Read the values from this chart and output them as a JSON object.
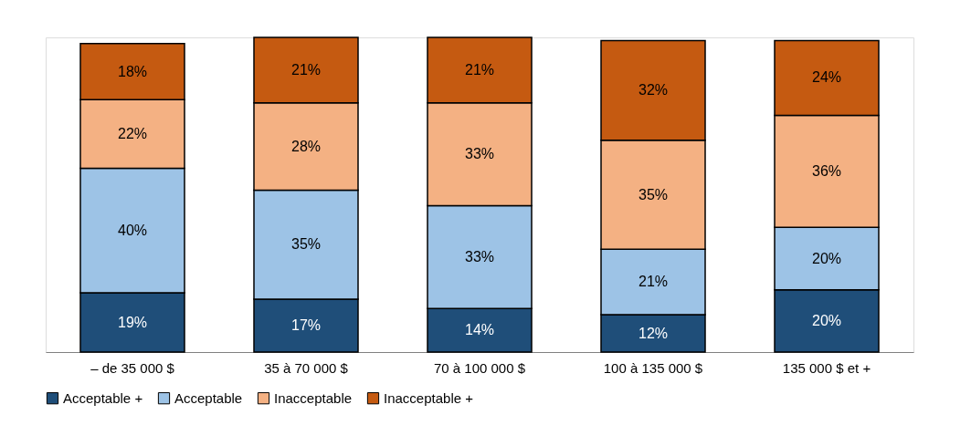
{
  "chart_data": {
    "type": "bar",
    "stacked": true,
    "legend": "bottom",
    "categories": [
      "– de 35 000 $",
      "35 à 70 000 $",
      "70 à 100 000 $",
      "100 à 135 000 $",
      "135 000 $ et +"
    ],
    "series": [
      {
        "name": "Acceptable +",
        "color": "#1f4e79",
        "values": [
          19,
          17,
          14,
          12,
          20
        ],
        "value_labels": [
          "19%",
          "17%",
          "14%",
          "12%",
          "20%"
        ]
      },
      {
        "name": "Acceptable",
        "color": "#9dc3e6",
        "values": [
          40,
          35,
          33,
          21,
          20
        ],
        "value_labels": [
          "40%",
          "35%",
          "33%",
          "21%",
          "20%"
        ]
      },
      {
        "name": "Inacceptable",
        "color": "#f4b183",
        "values": [
          22,
          28,
          33,
          35,
          36
        ],
        "value_labels": [
          "22%",
          "28%",
          "33%",
          "35%",
          "36%"
        ]
      },
      {
        "name": "Inacceptable +",
        "color": "#c55a11",
        "values": [
          18,
          21,
          21,
          32,
          24
        ],
        "value_labels": [
          "18%",
          "21%",
          "21%",
          "32%",
          "24%"
        ]
      }
    ]
  }
}
